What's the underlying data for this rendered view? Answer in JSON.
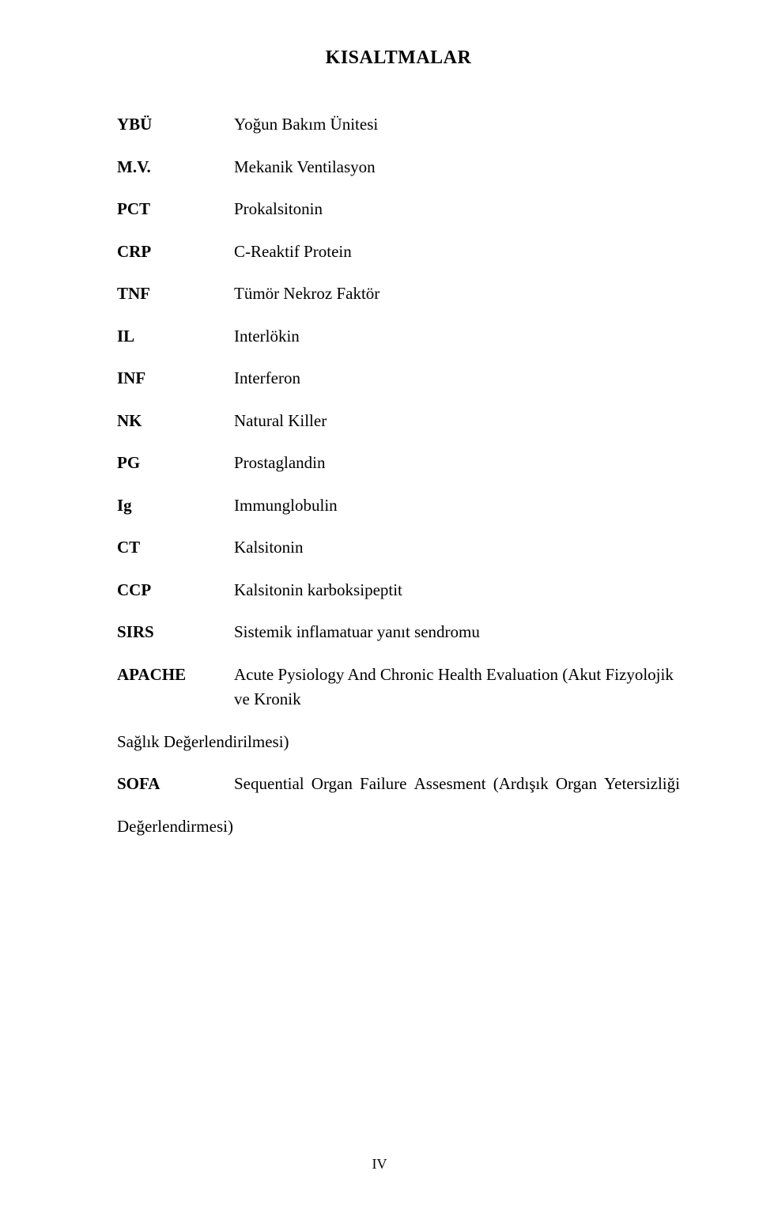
{
  "title": "KISALTMALAR",
  "abbreviations": [
    {
      "key": "YBÜ",
      "value": "Yoğun Bakım Ünitesi"
    },
    {
      "key": "M.V.",
      "value": "Mekanik Ventilasyon"
    },
    {
      "key": "PCT",
      "value": "Prokalsitonin"
    },
    {
      "key": "CRP",
      "value": "C-Reaktif Protein"
    },
    {
      "key": "TNF",
      "value": "Tümör Nekroz Faktör"
    },
    {
      "key": "IL",
      "value": "Interlökin"
    },
    {
      "key": "INF",
      "value": "Interferon"
    },
    {
      "key": "NK",
      "value": "Natural Killer"
    },
    {
      "key": "PG",
      "value": "Prostaglandin"
    },
    {
      "key": "Ig",
      "value": "Immunglobulin"
    },
    {
      "key": "CT",
      "value": "Kalsitonin"
    },
    {
      "key": "CCP",
      "value": "Kalsitonin karboksipeptit"
    },
    {
      "key": "SIRS",
      "value": "Sistemik inflamatuar yanıt sendromu"
    }
  ],
  "apache": {
    "key": "APACHE",
    "indent_class": "abbr-row",
    "value_line1": "Acute Pysiology And Chronic Health Evaluation (Akut Fizyolojik ve Kronik",
    "value_line2": "Sağlık Değerlendirilmesi)"
  },
  "sofa": {
    "key": "SOFA",
    "words": [
      "Sequential",
      "Organ",
      "Failure",
      "Assesment",
      "(Ardışık",
      "Organ",
      "Yetersizliği"
    ],
    "value_line2": "Değerlendirmesi)"
  },
  "page_number": "IV"
}
